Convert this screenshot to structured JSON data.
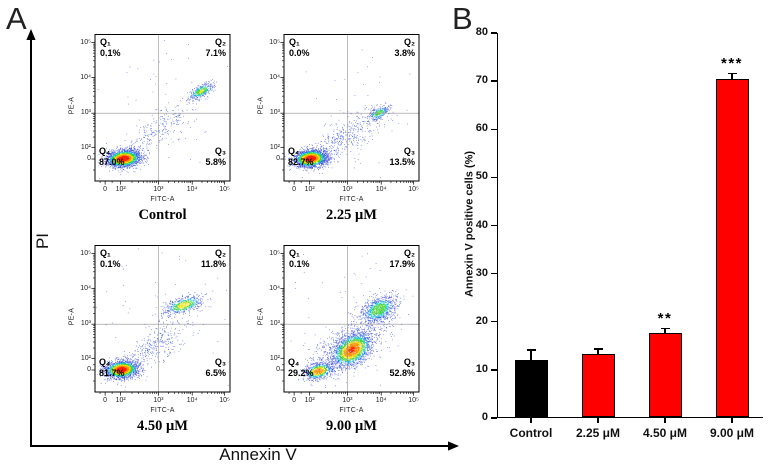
{
  "panel_a": {
    "label": "A",
    "y_axis_label": "PI",
    "x_axis_label": "Annexin V"
  },
  "panel_b": {
    "label": "B"
  },
  "chart_data": [
    {
      "type": "scatter",
      "panel": "A",
      "title": "Control",
      "xlabel": "FITC-A",
      "ylabel": "PE-A",
      "x_ticks": [
        "0",
        "10²",
        "10³",
        "10⁴",
        "10⁵"
      ],
      "y_ticks": [
        "0",
        "10²",
        "10³",
        "10⁴",
        "10⁵"
      ],
      "quadrants": {
        "q1": {
          "label": "Q₁",
          "value": "0.1%"
        },
        "q2": {
          "label": "Q₂",
          "value": "7.1%"
        },
        "q3": {
          "label": "Q₃",
          "value": "5.8%"
        },
        "q4": {
          "label": "Q₄",
          "value": "87.0%"
        }
      },
      "clusters": [
        {
          "x": 0.21,
          "y": 0.155,
          "sx": 0.06,
          "sy": 0.028,
          "rot": 5,
          "n": 2600,
          "core": 1
        },
        {
          "x": 0.785,
          "y": 0.615,
          "sx": 0.05,
          "sy": 0.02,
          "rot": 27,
          "n": 430,
          "core": 0.55
        },
        {
          "x": 0.47,
          "y": 0.35,
          "sx": 0.155,
          "sy": 0.05,
          "rot": 33,
          "n": 260,
          "core": 0
        },
        {
          "x": 0.5,
          "y": 0.5,
          "sx": 0.3,
          "sy": 0.26,
          "rot": 0,
          "n": 55,
          "core": 0
        }
      ]
    },
    {
      "type": "scatter",
      "panel": "A",
      "title": "2.25 μM",
      "xlabel": "FITC-A",
      "ylabel": "PE-A",
      "x_ticks": [
        "0",
        "10²",
        "10³",
        "10⁴",
        "10⁵"
      ],
      "y_ticks": [
        "0",
        "10²",
        "10³",
        "10⁴",
        "10⁵"
      ],
      "quadrants": {
        "q1": {
          "label": "Q₁",
          "value": "0.0%"
        },
        "q2": {
          "label": "Q₂",
          "value": "3.8%"
        },
        "q3": {
          "label": "Q₃",
          "value": "13.5%"
        },
        "q4": {
          "label": "Q₄",
          "value": "82.7%"
        }
      },
      "clusters": [
        {
          "x": 0.195,
          "y": 0.155,
          "sx": 0.058,
          "sy": 0.028,
          "rot": 5,
          "n": 2600,
          "core": 1
        },
        {
          "x": 0.7,
          "y": 0.465,
          "sx": 0.042,
          "sy": 0.02,
          "rot": 25,
          "n": 280,
          "core": 0.5
        },
        {
          "x": 0.45,
          "y": 0.3,
          "sx": 0.15,
          "sy": 0.055,
          "rot": 31,
          "n": 430,
          "core": 0
        },
        {
          "x": 0.5,
          "y": 0.5,
          "sx": 0.3,
          "sy": 0.26,
          "rot": 0,
          "n": 45,
          "core": 0
        }
      ]
    },
    {
      "type": "scatter",
      "panel": "A",
      "title": "4.50 μM",
      "xlabel": "FITC-A",
      "ylabel": "PE-A",
      "x_ticks": [
        "0",
        "10²",
        "10³",
        "10⁴",
        "10⁵"
      ],
      "y_ticks": [
        "0",
        "10²",
        "10³",
        "10⁴",
        "10⁵"
      ],
      "quadrants": {
        "q1": {
          "label": "Q₁",
          "value": "0.1%"
        },
        "q2": {
          "label": "Q₂",
          "value": "11.8%"
        },
        "q3": {
          "label": "Q₃",
          "value": "6.5%"
        },
        "q4": {
          "label": "Q₄",
          "value": "81.7%"
        }
      },
      "clusters": [
        {
          "x": 0.195,
          "y": 0.155,
          "sx": 0.058,
          "sy": 0.028,
          "rot": 5,
          "n": 2300,
          "core": 1
        },
        {
          "x": 0.655,
          "y": 0.595,
          "sx": 0.072,
          "sy": 0.026,
          "rot": 16,
          "n": 620,
          "core": 0.62
        },
        {
          "x": 0.44,
          "y": 0.32,
          "sx": 0.15,
          "sy": 0.058,
          "rot": 33,
          "n": 360,
          "core": 0
        },
        {
          "x": 0.5,
          "y": 0.5,
          "sx": 0.3,
          "sy": 0.26,
          "rot": 0,
          "n": 65,
          "core": 0
        }
      ]
    },
    {
      "type": "scatter",
      "panel": "A",
      "title": "9.00 μM",
      "xlabel": "FITC-A",
      "ylabel": "PE-A",
      "x_ticks": [
        "0",
        "10²",
        "10³",
        "10⁴",
        "10⁵"
      ],
      "y_ticks": [
        "0",
        "10²",
        "10³",
        "10⁴",
        "10⁵"
      ],
      "quadrants": {
        "q1": {
          "label": "Q₁",
          "value": "0.1%"
        },
        "q2": {
          "label": "Q₂",
          "value": "17.9%"
        },
        "q3": {
          "label": "Q₃",
          "value": "52.8%"
        },
        "q4": {
          "label": "Q₄",
          "value": "29.2%"
        }
      },
      "clusters": [
        {
          "x": 0.5,
          "y": 0.29,
          "sx": 0.08,
          "sy": 0.05,
          "rot": 30,
          "n": 2300,
          "core": 0.85
        },
        {
          "x": 0.255,
          "y": 0.145,
          "sx": 0.052,
          "sy": 0.026,
          "rot": 12,
          "n": 750,
          "core": 0.8
        },
        {
          "x": 0.7,
          "y": 0.565,
          "sx": 0.072,
          "sy": 0.042,
          "rot": 27,
          "n": 1050,
          "core": 0.5
        },
        {
          "x": 0.46,
          "y": 0.32,
          "sx": 0.19,
          "sy": 0.07,
          "rot": 31,
          "n": 550,
          "core": 0
        },
        {
          "x": 0.5,
          "y": 0.5,
          "sx": 0.3,
          "sy": 0.26,
          "rot": 0,
          "n": 70,
          "core": 0
        }
      ]
    },
    {
      "type": "bar",
      "panel": "B",
      "title": "",
      "ylabel": "Annexin V positive cells (%)",
      "xlabel": "",
      "categories": [
        "Control",
        "2.25 μM",
        "4.50 μM",
        "9.00 μM"
      ],
      "values": [
        11.9,
        13.0,
        17.4,
        70.2
      ],
      "errors": [
        2.1,
        1.2,
        1.0,
        1.3
      ],
      "significance": [
        "",
        "",
        "**",
        "***"
      ],
      "bar_colors": [
        "#000000",
        "#fe0000",
        "#fe0000",
        "#fe0000"
      ],
      "ylim": [
        0,
        80
      ],
      "ytick_step": 10,
      "y_ticks": [
        "0",
        "10",
        "20",
        "30",
        "40",
        "50",
        "60",
        "70",
        "80"
      ],
      "grid": false,
      "legend": false
    }
  ]
}
